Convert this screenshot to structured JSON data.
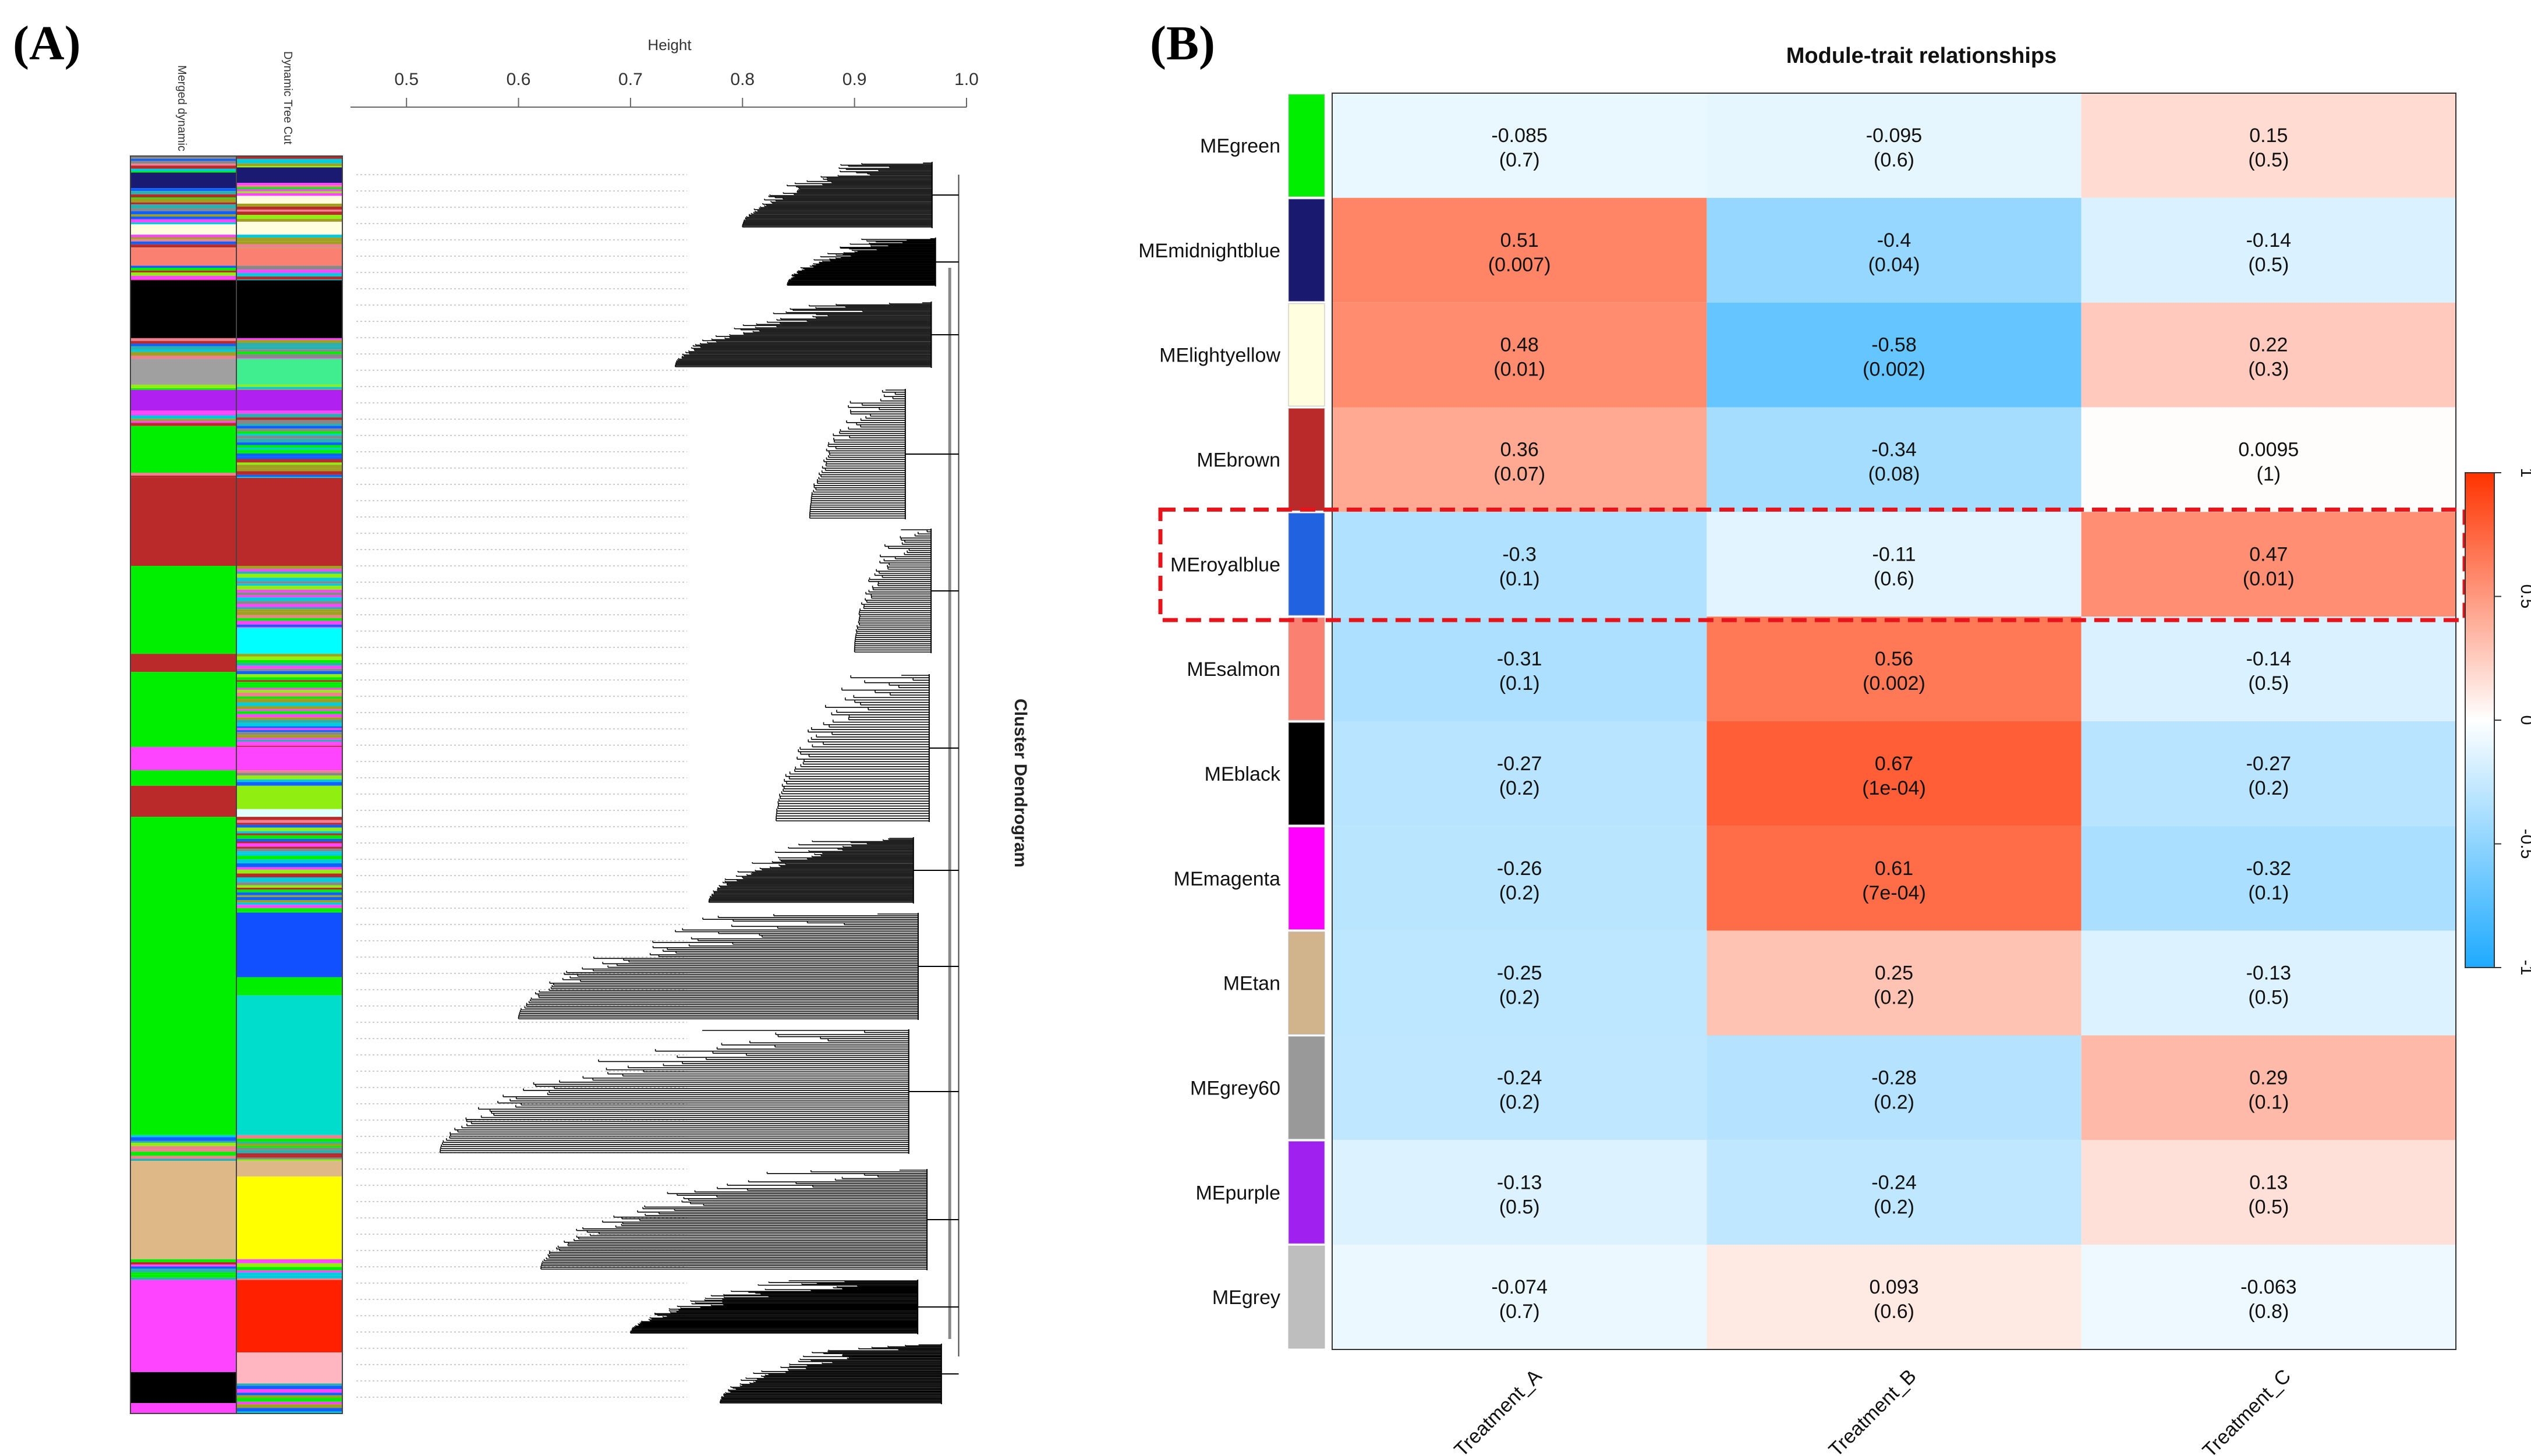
{
  "panel_a": {
    "label": "(A)",
    "axis_title": "Height",
    "axis_ticks": [
      "0.5",
      "0.6",
      "0.7",
      "0.8",
      "0.9",
      "1.0"
    ],
    "axis_tick_values": [
      0.5,
      0.6,
      0.7,
      0.8,
      0.9,
      1.0
    ],
    "axis_range": [
      0.45,
      1.0
    ],
    "colorbar_labels": [
      "Merged dynamic",
      "Dynamic Tree Cut"
    ],
    "dendrogram_title": "Cluster Dendrogram"
  },
  "panel_b": {
    "label": "(B)"
  },
  "chart_data": {
    "type": "heatmap",
    "title": "Module-trait relationships",
    "columns": [
      "Treatment_A",
      "Treatment_B",
      "Treatment_C"
    ],
    "rows": [
      {
        "name": "MEgreen",
        "color": "#00ee00",
        "r": [
          -0.085,
          -0.095,
          0.15
        ],
        "text": [
          "-0.085",
          "-0.095",
          "0.15"
        ],
        "p": [
          "(0.7)",
          "(0.6)",
          "(0.5)"
        ]
      },
      {
        "name": "MEmidnightblue",
        "color": "#191970",
        "r": [
          0.51,
          -0.4,
          -0.14
        ],
        "text": [
          "0.51",
          "-0.4",
          "-0.14"
        ],
        "p": [
          "(0.007)",
          "(0.04)",
          "(0.5)"
        ]
      },
      {
        "name": "MElightyellow",
        "color": "#ffffe0",
        "r": [
          0.48,
          -0.58,
          0.22
        ],
        "text": [
          "0.48",
          "-0.58",
          "0.22"
        ],
        "p": [
          "(0.01)",
          "(0.002)",
          "(0.3)"
        ]
      },
      {
        "name": "MEbrown",
        "color": "#bb2a2a",
        "r": [
          0.36,
          -0.34,
          0.0095
        ],
        "text": [
          "0.36",
          "-0.34",
          "0.0095"
        ],
        "p": [
          "(0.07)",
          "(0.08)",
          "(1)"
        ]
      },
      {
        "name": "MEroyalblue",
        "color": "#2062e0",
        "r": [
          -0.3,
          -0.11,
          0.47
        ],
        "text": [
          "-0.3",
          "-0.11",
          "0.47"
        ],
        "p": [
          "(0.1)",
          "(0.6)",
          "(0.01)"
        ]
      },
      {
        "name": "MEsalmon",
        "color": "#fa8072",
        "r": [
          -0.31,
          0.56,
          -0.14
        ],
        "text": [
          "-0.31",
          "0.56",
          "-0.14"
        ],
        "p": [
          "(0.1)",
          "(0.002)",
          "(0.5)"
        ]
      },
      {
        "name": "MEblack",
        "color": "#000000",
        "r": [
          -0.27,
          0.67,
          -0.27
        ],
        "text": [
          "-0.27",
          "0.67",
          "-0.27"
        ],
        "p": [
          "(0.2)",
          "(1e-04)",
          "(0.2)"
        ]
      },
      {
        "name": "MEmagenta",
        "color": "#ff00ff",
        "r": [
          -0.26,
          0.61,
          -0.32
        ],
        "text": [
          "-0.26",
          "0.61",
          "-0.32"
        ],
        "p": [
          "(0.2)",
          "(7e-04)",
          "(0.1)"
        ]
      },
      {
        "name": "MEtan",
        "color": "#d2b48c",
        "r": [
          -0.25,
          0.25,
          -0.13
        ],
        "text": [
          "-0.25",
          "0.25",
          "-0.13"
        ],
        "p": [
          "(0.2)",
          "(0.2)",
          "(0.5)"
        ]
      },
      {
        "name": "MEgrey60",
        "color": "#999999",
        "r": [
          -0.24,
          -0.28,
          0.29
        ],
        "text": [
          "-0.24",
          "-0.28",
          "0.29"
        ],
        "p": [
          "(0.2)",
          "(0.2)",
          "(0.1)"
        ]
      },
      {
        "name": "MEpurple",
        "color": "#a020f0",
        "r": [
          -0.13,
          -0.24,
          0.13
        ],
        "text": [
          "-0.13",
          "-0.24",
          "0.13"
        ],
        "p": [
          "(0.5)",
          "(0.2)",
          "(0.5)"
        ]
      },
      {
        "name": "MEgrey",
        "color": "#bebebe",
        "r": [
          -0.074,
          0.093,
          -0.063
        ],
        "text": [
          "-0.074",
          "0.093",
          "-0.063"
        ],
        "p": [
          "(0.7)",
          "(0.6)",
          "(0.8)"
        ]
      }
    ],
    "highlighted_row": "MEroyalblue",
    "legend": {
      "ticks": [
        "1",
        "0.5",
        "0",
        "-0.5",
        "-1"
      ],
      "values": [
        1,
        0.5,
        0,
        -0.5,
        -1
      ],
      "range": [
        -1,
        1
      ]
    },
    "colors": {
      "negative": "#1eaaff",
      "zero": "#ffffff",
      "positive": "#ff3300",
      "highlight": "#e8141c"
    }
  }
}
